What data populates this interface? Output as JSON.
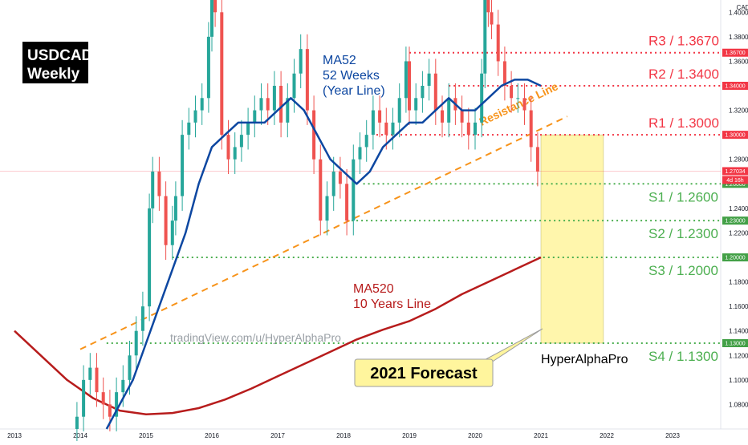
{
  "page": {
    "currency_label": "CAD"
  },
  "title_box": {
    "line1": "USDCAD",
    "line2": "Weekly"
  },
  "ma52_label": {
    "line1": "MA52",
    "line2": "52 Weeks",
    "line3": "(Year Line)"
  },
  "ma520_label": {
    "line1": "MA520",
    "line2": "10 Years Line"
  },
  "watermark": "tradingView.com/u/HyperAlphaPro",
  "forecast_callout": "2021 Forecast",
  "forecast_author": "HyperAlphaPro",
  "trendline_label": "Resistance Line",
  "colors": {
    "up_candle": "#26a69a",
    "down_candle": "#ef5350",
    "ma52": "#0d47a1",
    "ma520": "#b71c1c",
    "resistance_red": "#f23645",
    "support_green": "#4caf50",
    "trendline_orange": "#f7931a",
    "forecast_fill": "#fff59d",
    "price_tag": "#f23645",
    "support_tag": "#43a047"
  },
  "price_tags": {
    "current_price": "1.27034",
    "countdown": "4d 16h"
  },
  "chart_data": {
    "type": "line",
    "symbol": "USDCAD",
    "timeframe": "Weekly",
    "x_axis_years": [
      "2013",
      "2014",
      "2015",
      "2016",
      "2017",
      "2018",
      "2019",
      "2020",
      "2021",
      "2022",
      "2023"
    ],
    "y_ticks": [
      "1.40000",
      "1.38000",
      "1.36000",
      "1.34000",
      "1.32000",
      "1.30000",
      "1.28000",
      "1.26000",
      "1.24000",
      "1.22000",
      "1.20000",
      "1.18000",
      "1.16000",
      "1.14000",
      "1.12000",
      "1.10000",
      "1.08000"
    ],
    "ylim": [
      1.06,
      1.41
    ],
    "resistance_levels": [
      {
        "label": "R3 / 1.3670",
        "value": 1.367,
        "tag": "1.36700",
        "start": 2019.0
      },
      {
        "label": "R2 / 1.3400",
        "value": 1.34,
        "tag": "1.34000",
        "start": 2019.6
      },
      {
        "label": "R1 / 1.3000",
        "value": 1.3,
        "tag": "1.30000",
        "start": 2018.5
      }
    ],
    "support_levels": [
      {
        "label": "S1 / 1.2600",
        "value": 1.26,
        "tag": "1.26000",
        "start": 2018.3
      },
      {
        "label": "S2 / 1.2300",
        "value": 1.23,
        "tag": "1.23000",
        "start": 2018.05
      },
      {
        "label": "S3 / 1.2000",
        "value": 1.2,
        "tag": "1.20000",
        "start": 2015.4
      },
      {
        "label": "S4 / 1.1300",
        "value": 1.13,
        "tag": "1.13000",
        "start": 2014.4
      }
    ],
    "current_price": 1.27034,
    "price_series": {
      "name": "USDCAD",
      "x": [
        2013.95,
        2014.05,
        2014.15,
        2014.25,
        2014.35,
        2014.45,
        2014.55,
        2014.65,
        2014.75,
        2014.85,
        2014.95,
        2015.05,
        2015.1,
        2015.2,
        2015.3,
        2015.4,
        2015.45,
        2015.55,
        2015.65,
        2015.75,
        2015.85,
        2015.95,
        2016.0,
        2016.05,
        2016.15,
        2016.25,
        2016.35,
        2016.45,
        2016.55,
        2016.65,
        2016.75,
        2016.85,
        2016.95,
        2017.05,
        2017.15,
        2017.25,
        2017.35,
        2017.45,
        2017.55,
        2017.65,
        2017.75,
        2017.85,
        2017.95,
        2018.05,
        2018.15,
        2018.25,
        2018.35,
        2018.45,
        2018.55,
        2018.65,
        2018.75,
        2018.85,
        2018.95,
        2019.0,
        2019.1,
        2019.2,
        2019.3,
        2019.4,
        2019.5,
        2019.6,
        2019.7,
        2019.8,
        2019.9,
        2020.0,
        2020.1,
        2020.15,
        2020.2,
        2020.25,
        2020.35,
        2020.45,
        2020.55,
        2020.65,
        2020.75,
        2020.85,
        2020.95
      ],
      "y": [
        1.07,
        1.1,
        1.11,
        1.09,
        1.08,
        1.07,
        1.09,
        1.1,
        1.12,
        1.14,
        1.16,
        1.24,
        1.27,
        1.25,
        1.21,
        1.23,
        1.25,
        1.3,
        1.31,
        1.32,
        1.33,
        1.38,
        1.45,
        1.4,
        1.3,
        1.28,
        1.29,
        1.3,
        1.31,
        1.32,
        1.33,
        1.32,
        1.34,
        1.31,
        1.33,
        1.35,
        1.37,
        1.32,
        1.28,
        1.23,
        1.25,
        1.27,
        1.26,
        1.23,
        1.28,
        1.29,
        1.3,
        1.32,
        1.31,
        1.3,
        1.31,
        1.33,
        1.36,
        1.32,
        1.33,
        1.34,
        1.35,
        1.32,
        1.31,
        1.33,
        1.32,
        1.31,
        1.3,
        1.31,
        1.35,
        1.42,
        1.4,
        1.39,
        1.36,
        1.34,
        1.33,
        1.33,
        1.32,
        1.29,
        1.27
      ]
    },
    "ma52": {
      "name": "MA52",
      "x": [
        2014.4,
        2014.6,
        2014.8,
        2015.0,
        2015.2,
        2015.4,
        2015.6,
        2015.8,
        2016.0,
        2016.2,
        2016.4,
        2016.6,
        2016.8,
        2017.0,
        2017.2,
        2017.4,
        2017.6,
        2017.8,
        2018.0,
        2018.2,
        2018.4,
        2018.6,
        2018.8,
        2019.0,
        2019.2,
        2019.4,
        2019.6,
        2019.8,
        2020.0,
        2020.2,
        2020.4,
        2020.6,
        2020.8,
        2021.0
      ],
      "y": [
        1.06,
        1.08,
        1.1,
        1.13,
        1.16,
        1.19,
        1.22,
        1.26,
        1.29,
        1.3,
        1.31,
        1.31,
        1.31,
        1.32,
        1.33,
        1.32,
        1.3,
        1.28,
        1.27,
        1.26,
        1.27,
        1.29,
        1.3,
        1.31,
        1.31,
        1.32,
        1.33,
        1.32,
        1.32,
        1.33,
        1.34,
        1.345,
        1.345,
        1.34
      ]
    },
    "ma520": {
      "name": "MA520",
      "x": [
        2013.0,
        2013.4,
        2013.8,
        2014.2,
        2014.6,
        2015.0,
        2015.4,
        2015.8,
        2016.2,
        2016.6,
        2017.0,
        2017.4,
        2017.8,
        2018.2,
        2018.6,
        2019.0,
        2019.4,
        2019.8,
        2020.2,
        2020.6,
        2021.0
      ],
      "y": [
        1.14,
        1.12,
        1.1,
        1.085,
        1.075,
        1.072,
        1.073,
        1.077,
        1.084,
        1.093,
        1.103,
        1.113,
        1.123,
        1.133,
        1.141,
        1.148,
        1.158,
        1.17,
        1.18,
        1.19,
        1.2
      ]
    },
    "resistance_trendline": {
      "x": [
        2014.0,
        2021.4
      ],
      "y": [
        1.125,
        1.315
      ]
    },
    "forecast_box": {
      "x": [
        2021.0,
        2021.95
      ],
      "y": [
        1.13,
        1.3
      ]
    }
  }
}
